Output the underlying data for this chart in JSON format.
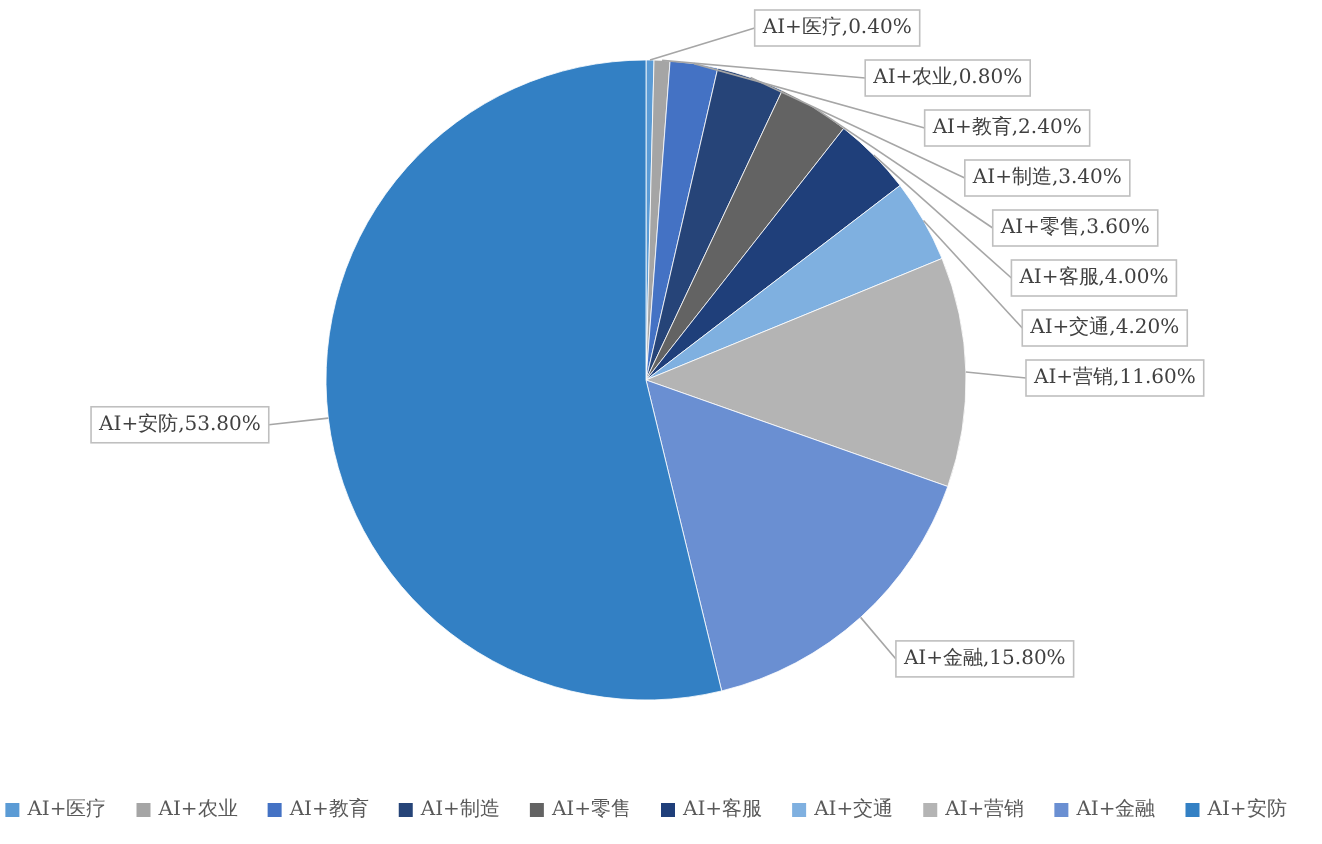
{
  "chart_data": {
    "type": "pie",
    "categories": [
      "AI+医疗",
      "AI+农业",
      "AI+教育",
      "AI+制造",
      "AI+零售",
      "AI+客服",
      "AI+交通",
      "AI+营销",
      "AI+金融",
      "AI+安防"
    ],
    "values": [
      0.4,
      0.8,
      2.4,
      3.4,
      3.6,
      4.0,
      4.2,
      11.6,
      15.8,
      53.8
    ],
    "value_labels": [
      ",0.40%",
      ",0.80%",
      ",2.40%",
      ",3.40%",
      ",3.60%",
      ",4.00%",
      ",4.20%",
      ",11.60%",
      ",15.80%",
      ",53.80%"
    ],
    "colors": [
      "#5b9bd5",
      "#a5a5a5",
      "#4472c4",
      "#264478",
      "#636363",
      "#1f3f7a",
      "#7fb0e0",
      "#b4b4b4",
      "#6a8fd2",
      "#3380c4"
    ],
    "legend": "bottom"
  }
}
